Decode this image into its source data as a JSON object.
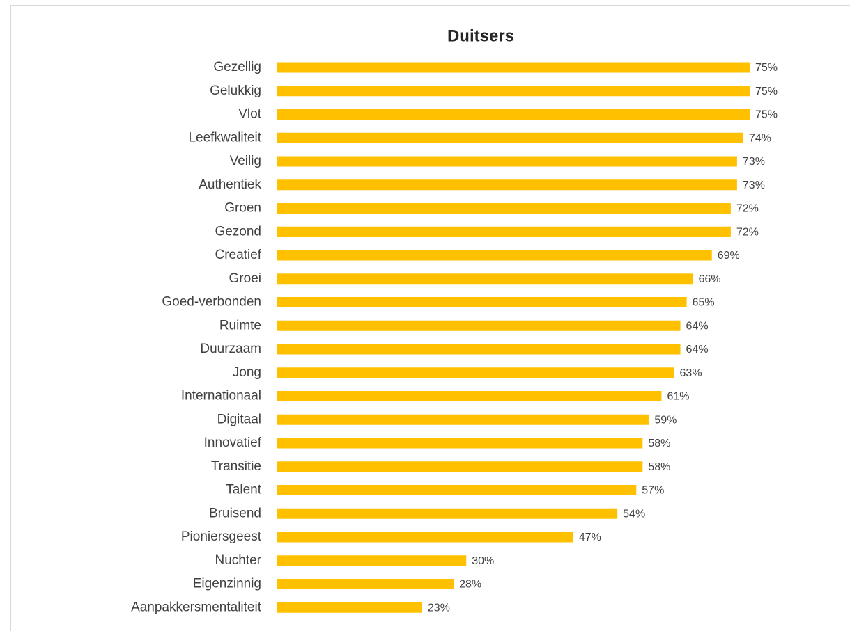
{
  "chart_data": {
    "type": "bar",
    "orientation": "horizontal",
    "title": "Duitsers",
    "color": "#ffc000",
    "categories": [
      "Gezellig",
      "Gelukkig",
      "Vlot",
      "Leefkwaliteit",
      "Veilig",
      "Authentiek",
      "Groen",
      "Gezond",
      "Creatief",
      "Groei",
      "Goed-verbonden",
      "Ruimte",
      "Duurzaam",
      "Jong",
      "Internationaal",
      "Digitaal",
      "Innovatief",
      "Transitie",
      "Talent",
      "Bruisend",
      "Pioniersgeest",
      "Nuchter",
      "Eigenzinnig",
      "Aanpakkersmentaliteit"
    ],
    "values": [
      75,
      75,
      75,
      74,
      73,
      73,
      72,
      72,
      69,
      66,
      65,
      64,
      64,
      63,
      61,
      59,
      58,
      58,
      57,
      54,
      47,
      30,
      28,
      23
    ],
    "value_labels": [
      "75%",
      "75%",
      "75%",
      "74%",
      "73%",
      "73%",
      "72%",
      "72%",
      "69%",
      "66%",
      "65%",
      "64%",
      "64%",
      "63%",
      "61%",
      "59%",
      "58%",
      "58%",
      "57%",
      "54%",
      "47%",
      "30%",
      "28%",
      "23%"
    ]
  }
}
